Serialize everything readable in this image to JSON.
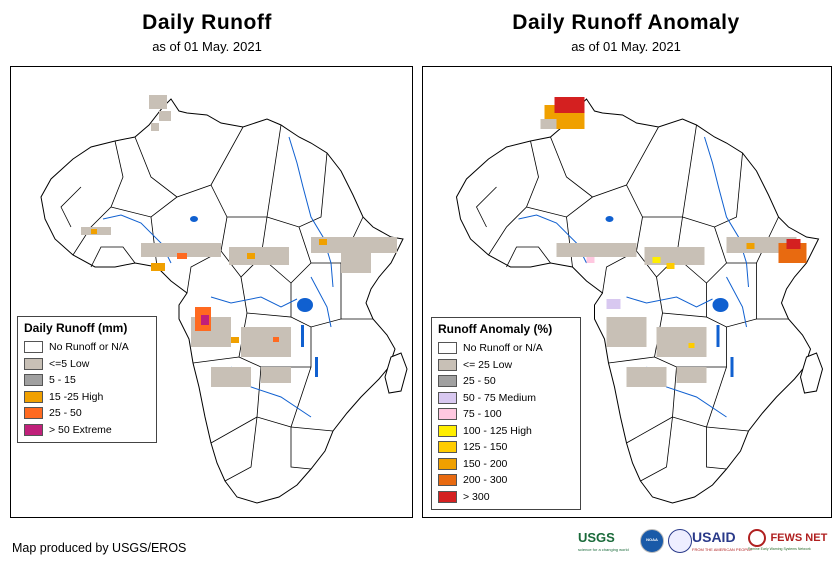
{
  "left_panel": {
    "title": "Daily Runoff",
    "subtitle": "as of 01 May. 2021",
    "legend": {
      "title": "Daily Runoff (mm)",
      "items": [
        {
          "label": "No Runoff or N/A",
          "color": "#ffffff"
        },
        {
          "label": "<=5 Low",
          "color": "#c8c0b6"
        },
        {
          "label": "5 - 15",
          "color": "#a0a0a0"
        },
        {
          "label": "15 -25 High",
          "color": "#f0a000"
        },
        {
          "label": "25 - 50",
          "color": "#ff6a20"
        },
        {
          "label": "> 50 Extreme",
          "color": "#c0207a"
        }
      ]
    }
  },
  "right_panel": {
    "title": "Daily Runoff Anomaly",
    "subtitle": "as of 01 May. 2021",
    "legend": {
      "title": "Runoff Anomaly (%)",
      "items": [
        {
          "label": "No Runoff or N/A",
          "color": "#ffffff"
        },
        {
          "label": "<= 25 Low",
          "color": "#c8c0b6"
        },
        {
          "label": "25 - 50",
          "color": "#a0a0a0"
        },
        {
          "label": "50 - 75 Medium",
          "color": "#d8c8f0"
        },
        {
          "label": "75 - 100",
          "color": "#ffc8e0"
        },
        {
          "label": "100 - 125 High",
          "color": "#ffee00"
        },
        {
          "label": "125 - 150",
          "color": "#ffcc00"
        },
        {
          "label": "150 - 200",
          "color": "#f0a000"
        },
        {
          "label": "200 - 300",
          "color": "#e86a10"
        },
        {
          "label": "> 300",
          "color": "#d42020"
        }
      ]
    }
  },
  "credit": "Map produced by USGS/EROS",
  "logos": {
    "usgs": "USGS",
    "usgs_tagline": "science for a changing world",
    "noaa": "NOAA",
    "usaid": "USAID",
    "usaid_tagline": "FROM THE AMERICAN PEOPLE",
    "fewsnet": "FEWS NET",
    "fewsnet_tagline": "Famine Early Warning Systems Network"
  },
  "colors": {
    "water": "#1060d0",
    "border": "#000000"
  }
}
